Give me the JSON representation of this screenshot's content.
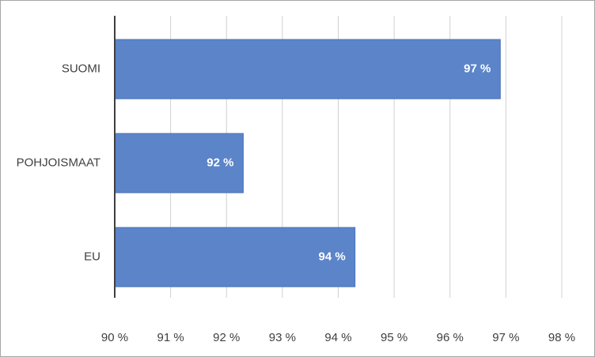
{
  "chart_data": {
    "type": "bar",
    "orientation": "horizontal",
    "categories": [
      "SUOMI",
      "POHJOISMAAT",
      "EU"
    ],
    "values": [
      96.9,
      92.3,
      94.3
    ],
    "value_labels": [
      "97 %",
      "92 %",
      "94 %"
    ],
    "color": "#5b84c9",
    "xlim": [
      90,
      98
    ],
    "xticks": [
      {
        "value": 90,
        "label": "90 %"
      },
      {
        "value": 91,
        "label": "91 %"
      },
      {
        "value": 92,
        "label": "92 %"
      },
      {
        "value": 93,
        "label": "93 %"
      },
      {
        "value": 94,
        "label": "94 %"
      },
      {
        "value": 95,
        "label": "95 %"
      },
      {
        "value": 96,
        "label": "96 %"
      },
      {
        "value": 97,
        "label": "97 %"
      },
      {
        "value": 98,
        "label": "98 %"
      }
    ],
    "grid": true
  }
}
